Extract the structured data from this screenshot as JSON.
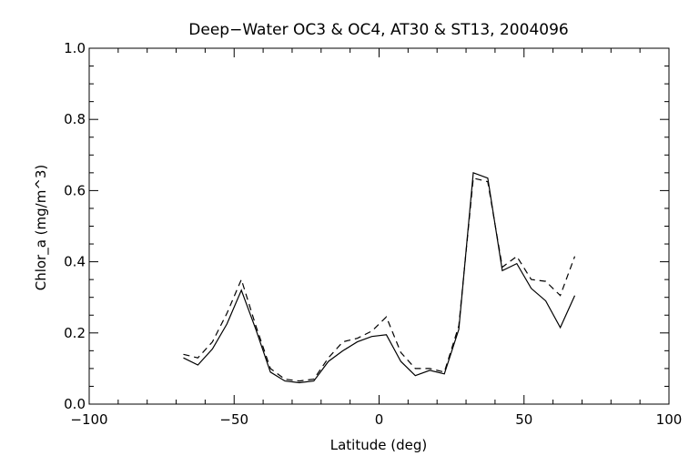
{
  "chart_data": {
    "type": "line",
    "title": "Deep−Water OC3 & OC4, AT30 & ST13, 2004096",
    "xlabel": "Latitude (deg)",
    "ylabel": "Chlor_a (mg/m^3)",
    "xlim": [
      -100,
      100
    ],
    "ylim": [
      0.0,
      1.0
    ],
    "x_ticks": [
      -100,
      -50,
      0,
      50,
      100
    ],
    "x_tick_labels": [
      "−100",
      "−50",
      "0",
      "50",
      "100"
    ],
    "y_ticks": [
      0.0,
      0.2,
      0.4,
      0.6,
      0.8,
      1.0
    ],
    "y_tick_labels": [
      "0.0",
      "0.2",
      "0.4",
      "0.6",
      "0.8",
      "1.0"
    ],
    "grid": false,
    "series": [
      {
        "style": "solid",
        "color": "#000000",
        "x": [
          -67.5,
          -62.5,
          -57.5,
          -52.5,
          -47.5,
          -42.5,
          -37.5,
          -32.5,
          -27.5,
          -22.5,
          -17.5,
          -12.5,
          -7.5,
          -2.5,
          2.5,
          7.5,
          12.5,
          17.5,
          22.5,
          27.5,
          32.5,
          37.5,
          42.5,
          47.5,
          52.5,
          57.5,
          62.5,
          67.5
        ],
        "values": [
          0.13,
          0.11,
          0.155,
          0.225,
          0.32,
          0.21,
          0.09,
          0.065,
          0.06,
          0.065,
          0.12,
          0.15,
          0.175,
          0.19,
          0.195,
          0.12,
          0.08,
          0.095,
          0.085,
          0.21,
          0.65,
          0.635,
          0.375,
          0.395,
          0.325,
          0.29,
          0.215,
          0.305
        ]
      },
      {
        "style": "dashed",
        "color": "#000000",
        "x": [
          -67.5,
          -62.5,
          -57.5,
          -52.5,
          -47.5,
          -42.5,
          -37.5,
          -32.5,
          -27.5,
          -22.5,
          -17.5,
          -12.5,
          -7.5,
          -2.5,
          2.5,
          7.5,
          12.5,
          17.5,
          22.5,
          27.5,
          32.5,
          37.5,
          42.5,
          47.5,
          52.5,
          57.5,
          62.5,
          67.5
        ],
        "values": [
          0.14,
          0.13,
          0.175,
          0.255,
          0.35,
          0.22,
          0.1,
          0.07,
          0.065,
          0.07,
          0.13,
          0.175,
          0.185,
          0.205,
          0.245,
          0.145,
          0.1,
          0.1,
          0.09,
          0.22,
          0.635,
          0.625,
          0.385,
          0.415,
          0.35,
          0.345,
          0.305,
          0.415
        ]
      }
    ]
  }
}
